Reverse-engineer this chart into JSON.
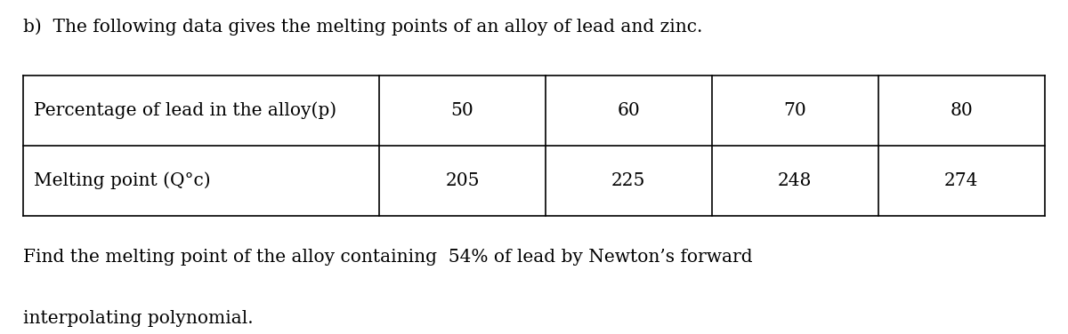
{
  "title_prefix": "b)",
  "title_text": "The following data gives the melting points of an alloy of lead and zinc.",
  "row1_header": "Percentage of lead in the alloy(p)",
  "row2_header": "Melting point (Q°c)",
  "col_values_row1": [
    "50",
    "60",
    "70",
    "80"
  ],
  "col_values_row2": [
    "205",
    "225",
    "248",
    "274"
  ],
  "footer_line1": "Find the melting point of the alloy containing  54% of lead by Newton’s forward",
  "footer_line2": "interpolating polynomial.",
  "bg_color": "#ffffff",
  "text_color": "#000000",
  "table_line_color": "#000000",
  "font_size_title": 14.5,
  "font_size_table": 14.5,
  "font_size_footer": 14.5,
  "fig_width": 12.0,
  "fig_height": 3.76
}
